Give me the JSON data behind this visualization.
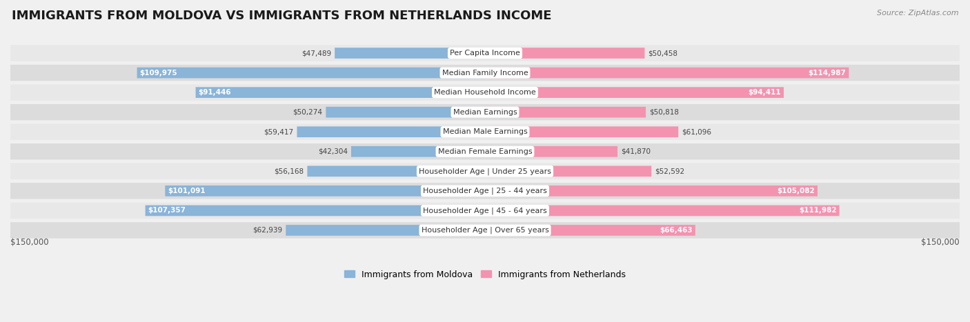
{
  "title": "IMMIGRANTS FROM MOLDOVA VS IMMIGRANTS FROM NETHERLANDS INCOME",
  "source": "Source: ZipAtlas.com",
  "categories": [
    "Per Capita Income",
    "Median Family Income",
    "Median Household Income",
    "Median Earnings",
    "Median Male Earnings",
    "Median Female Earnings",
    "Householder Age | Under 25 years",
    "Householder Age | 25 - 44 years",
    "Householder Age | 45 - 64 years",
    "Householder Age | Over 65 years"
  ],
  "moldova_values": [
    47489,
    109975,
    91446,
    50274,
    59417,
    42304,
    56168,
    101091,
    107357,
    62939
  ],
  "netherlands_values": [
    50458,
    114987,
    94411,
    50818,
    61096,
    41870,
    52592,
    105082,
    111982,
    66463
  ],
  "moldova_color": "#8ab4d8",
  "netherlands_color": "#f393b0",
  "max_value": 150000,
  "legend_moldova": "Immigrants from Moldova",
  "legend_netherlands": "Immigrants from Netherlands",
  "background_color": "#f0f0f0",
  "row_color_light": "#e8e8e8",
  "row_color_dark": "#dcdcdc",
  "axis_label": "$150,000",
  "title_fontsize": 13,
  "source_fontsize": 8,
  "label_fontsize": 8.5,
  "category_fontsize": 8,
  "value_fontsize": 7.5,
  "inside_label_threshold": 65000
}
